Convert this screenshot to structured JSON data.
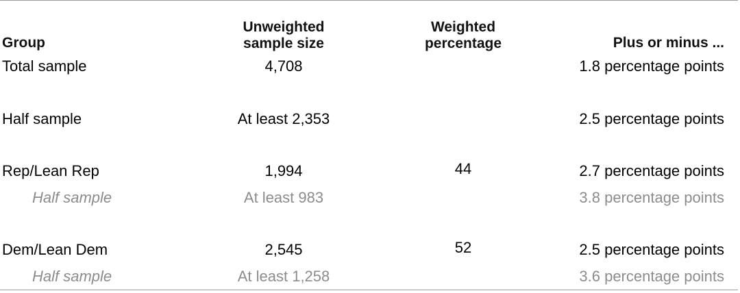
{
  "headers": {
    "group": "Group",
    "unweighted_line1": "Unweighted",
    "unweighted_line2": "sample size",
    "weighted_line1": "Weighted",
    "weighted_line2": "percentage",
    "plusminus": "Plus or minus ..."
  },
  "rows": [
    {
      "group": "Total sample",
      "unweighted": "4,708",
      "weighted": "",
      "moe": "1.8 percentage points"
    },
    {
      "group": "Half sample",
      "unweighted": "At least 2,353",
      "weighted": "",
      "moe": "2.5 percentage points"
    },
    {
      "group": "Rep/Lean Rep",
      "unweighted": "1,994",
      "weighted": "44",
      "moe": "2.7 percentage points"
    },
    {
      "group": "Half sample",
      "unweighted": "At least 983",
      "weighted": "",
      "moe": "3.8 percentage points"
    },
    {
      "group": "Dem/Lean Dem",
      "unweighted": "2,545",
      "weighted": "52",
      "moe": "2.5 percentage points"
    },
    {
      "group": "Half sample",
      "unweighted": "At least 1,258",
      "weighted": "",
      "moe": "3.6 percentage points"
    }
  ],
  "colors": {
    "text": "#000000",
    "subrow_text": "#8c8c8c",
    "rule": "#9a9a9a"
  }
}
